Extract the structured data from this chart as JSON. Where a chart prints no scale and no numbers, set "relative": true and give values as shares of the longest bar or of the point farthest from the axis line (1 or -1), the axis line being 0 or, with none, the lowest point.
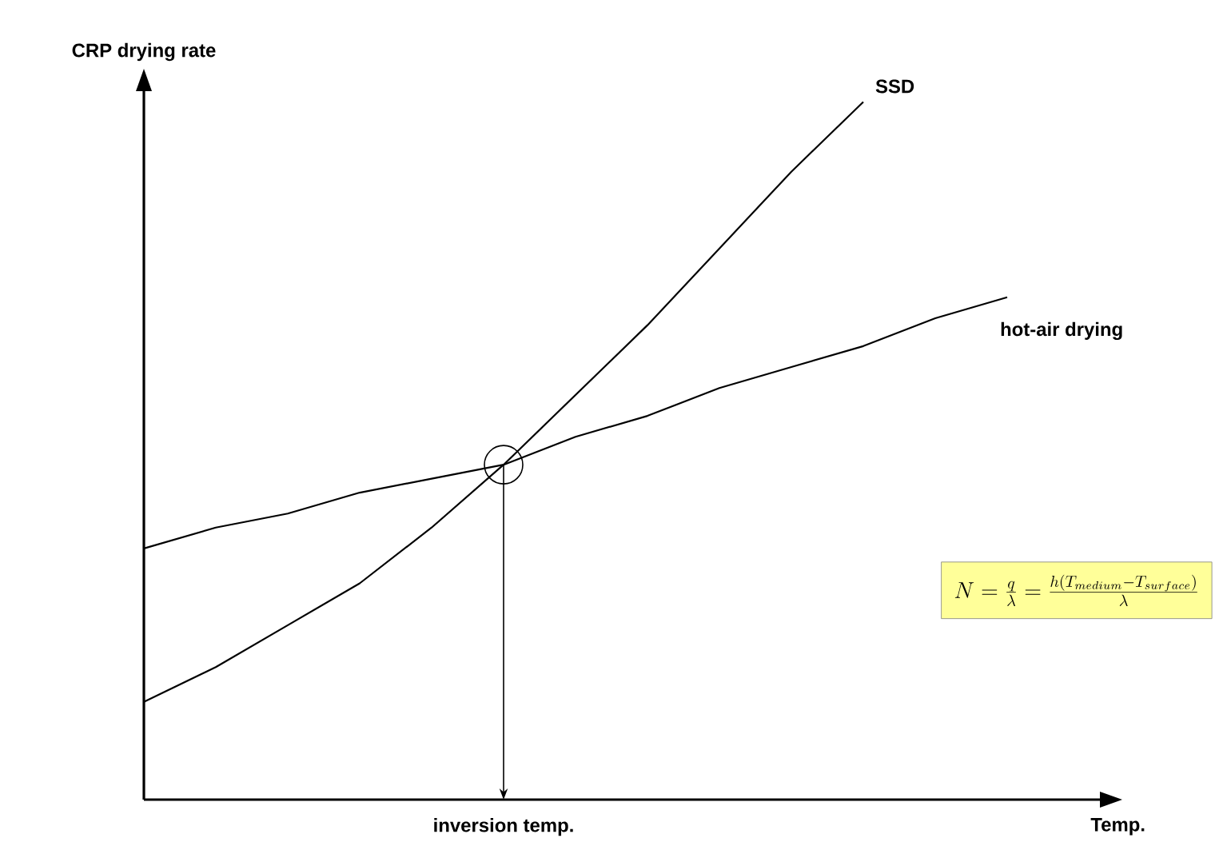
{
  "chart_data": {
    "type": "line",
    "relative": true,
    "xlabel": "Temp.",
    "ylabel": "CRP drying rate",
    "categories": [
      null,
      null,
      null,
      null,
      null,
      null,
      null,
      null,
      null,
      null,
      null,
      null,
      null
    ],
    "series": [
      {
        "name": "SSD",
        "color": "#000000",
        "values": [
          0.14,
          0.19,
          0.25,
          0.31,
          0.39,
          0.48,
          0.58,
          0.68,
          0.79,
          0.9,
          1,
          null,
          null
        ]
      },
      {
        "name": "hot-air drying",
        "color": "#000000",
        "values": [
          0.36,
          0.39,
          0.41,
          0.44,
          0.46,
          0.48,
          0.52,
          0.55,
          0.59,
          0.62,
          0.65,
          0.69,
          0.72
        ]
      }
    ],
    "annotations": [
      "inversion temp.",
      "N=\\frac{q}{\\lambda}=\\frac{h(T_{medium}-T_{surface})}{\\lambda}"
    ],
    "marker": "none",
    "line_style": "solid"
  }
}
